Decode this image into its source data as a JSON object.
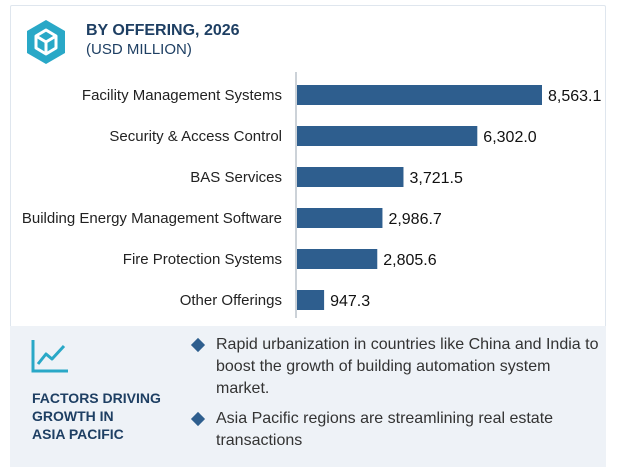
{
  "header": {
    "title": "BY OFFERING, 2026",
    "subtitle": "(USD MILLION)",
    "logo_icon": "hexagon-cube-icon"
  },
  "chart_data": {
    "type": "bar",
    "orientation": "horizontal",
    "title": "BY OFFERING, 2026",
    "subtitle": "(USD MILLION)",
    "categories": [
      "Facility Management Systems",
      "Security & Access Control",
      "BAS Services",
      "Building Energy Management Software",
      "Fire Protection Systems",
      "Other Offerings"
    ],
    "values": [
      8563.1,
      6302.0,
      3721.5,
      2986.7,
      2805.6,
      947.3
    ],
    "value_labels": [
      "8,563.1",
      "6,302.0",
      "3,721.5",
      "2,986.7",
      "2,805.6",
      "947.3"
    ],
    "bar_color": "#2e5e8e",
    "xlim": [
      0,
      8563.1
    ],
    "grid": false,
    "legend": "none"
  },
  "factors": {
    "icon": "trend-line-icon",
    "heading_lines": [
      "FACTORS DRIVING",
      "GROWTH IN",
      "ASIA PACIFIC"
    ],
    "bullets": [
      "Rapid urbanization in countries like China and India to boost the growth of building automation system market.",
      "Asia Pacific regions are streamlining real estate transactions"
    ]
  }
}
